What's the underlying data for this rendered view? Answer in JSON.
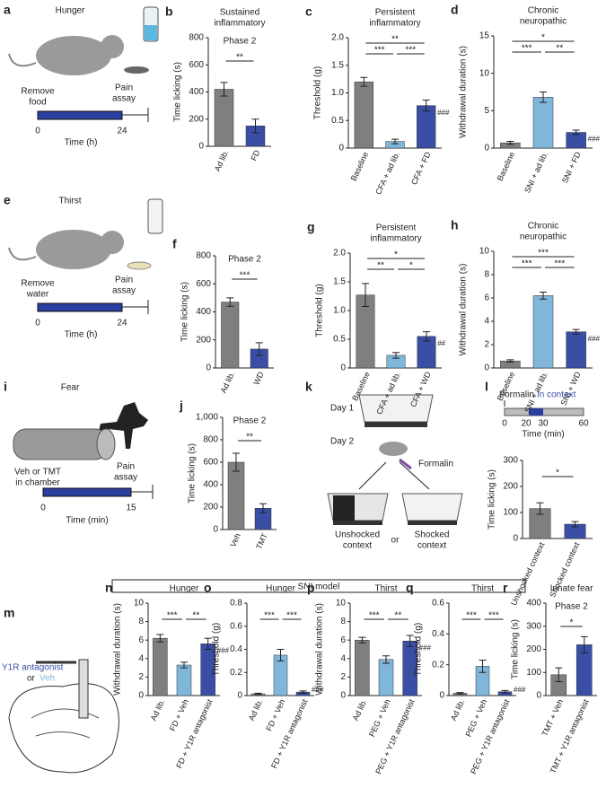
{
  "chart_data": [
    {
      "type": "bar",
      "label": "b",
      "title": [
        "Sustained",
        "inflammatory"
      ],
      "subtitle": "Phase 2",
      "ylabel": "Time licking (s)",
      "ylim": [
        0,
        800
      ],
      "yticks": [
        0,
        200,
        400,
        600,
        800
      ],
      "categories": [
        "Ad lib.",
        "FD"
      ],
      "values": [
        420,
        150
      ],
      "errors": [
        50,
        50
      ],
      "colors": [
        "#7f7f7f",
        "#3a4ea6"
      ],
      "annotations": [
        {
          "text": "**",
          "from": 0,
          "to": 1
        }
      ]
    },
    {
      "type": "bar",
      "label": "c",
      "title": [
        "Persistent",
        "inflammatory"
      ],
      "ylabel": "Threshold (g)",
      "ylim": [
        0,
        2
      ],
      "yticks": [
        0,
        0.5,
        {
          "value": 1,
          "label": "1.0"
        },
        1.5,
        {
          "value": 2,
          "label": "2.0"
        }
      ],
      "categories": [
        "Baseline",
        "CFA + ad lib.",
        "CFA + FD"
      ],
      "values": [
        1.2,
        0.12,
        0.77
      ],
      "errors": [
        0.08,
        0.04,
        0.1
      ],
      "colors": [
        "#7f7f7f",
        "#7fb6d9",
        "#3a4ea6"
      ],
      "annotations": [
        {
          "text": "**",
          "from": 0,
          "to": 2
        },
        {
          "text": "***",
          "from": 0,
          "to": 1
        },
        {
          "text": "***",
          "from": 1,
          "to": 2
        },
        {
          "text": "###"
        }
      ]
    },
    {
      "type": "bar",
      "label": "d",
      "title": [
        "Chronic",
        "neuropathic"
      ],
      "ylabel": "Withdrawal duration (s)",
      "ylim": [
        0,
        15
      ],
      "yticks": [
        0,
        5,
        10,
        15
      ],
      "categories": [
        "Baseline",
        "SNI + ad lib.",
        "SNI + FD"
      ],
      "values": [
        0.7,
        6.8,
        2.1
      ],
      "errors": [
        0.2,
        0.7,
        0.3
      ],
      "colors": [
        "#7f7f7f",
        "#7fb6d9",
        "#3a4ea6"
      ],
      "annotations": [
        {
          "text": "*",
          "from": 0,
          "to": 2
        },
        {
          "text": "***",
          "from": 0,
          "to": 1
        },
        {
          "text": "**",
          "from": 1,
          "to": 2
        },
        {
          "text": "###"
        }
      ]
    },
    {
      "type": "bar",
      "label": "f",
      "subtitle": "Phase 2",
      "ylabel": "Time licking (s)",
      "ylim": [
        0,
        800
      ],
      "yticks": [
        0,
        200,
        400,
        600,
        800
      ],
      "categories": [
        "Ad lib.",
        "WD"
      ],
      "values": [
        470,
        135
      ],
      "errors": [
        30,
        45
      ],
      "colors": [
        "#7f7f7f",
        "#3a4ea6"
      ],
      "annotations": [
        {
          "text": "***",
          "from": 0,
          "to": 1
        }
      ]
    },
    {
      "type": "bar",
      "label": "g",
      "title": [
        "Persistent",
        "inflammatory"
      ],
      "ylabel": "Threshold (g)",
      "ylim": [
        0,
        2
      ],
      "yticks": [
        0,
        0.5,
        {
          "value": 1,
          "label": "1.0"
        },
        1.5,
        {
          "value": 2,
          "label": "2.0"
        }
      ],
      "categories": [
        "Baseline",
        "CFA + ad lib.",
        "CFA + WD"
      ],
      "values": [
        1.27,
        0.22,
        0.55
      ],
      "errors": [
        0.2,
        0.05,
        0.08
      ],
      "colors": [
        "#7f7f7f",
        "#7fb6d9",
        "#3a4ea6"
      ],
      "annotations": [
        {
          "text": "*",
          "from": 0,
          "to": 2
        },
        {
          "text": "**",
          "from": 0,
          "to": 1
        },
        {
          "text": "*",
          "from": 1,
          "to": 2
        },
        {
          "text": "##"
        }
      ]
    },
    {
      "type": "bar",
      "label": "h",
      "title": [
        "Chronic",
        "neuropathic"
      ],
      "ylabel": "Withdrawal duration (s)",
      "ylim": [
        0,
        10
      ],
      "yticks": [
        0,
        2,
        4,
        6,
        8,
        10
      ],
      "categories": [
        "Baseline",
        "SNI + ad lib.",
        "SNI + WD"
      ],
      "values": [
        0.6,
        6.2,
        3.1
      ],
      "errors": [
        0.1,
        0.3,
        0.2
      ],
      "colors": [
        "#7f7f7f",
        "#7fb6d9",
        "#3a4ea6"
      ],
      "annotations": [
        {
          "text": "***",
          "from": 0,
          "to": 2
        },
        {
          "text": "***",
          "from": 0,
          "to": 1
        },
        {
          "text": "***",
          "from": 1,
          "to": 2
        },
        {
          "text": "###"
        }
      ]
    },
    {
      "type": "bar",
      "label": "j",
      "subtitle": "Phase 2",
      "ylabel": "Time licking (s)",
      "ylim": [
        0,
        1000
      ],
      "yticks": [
        0,
        200,
        400,
        600,
        800,
        {
          "value": 1000,
          "label": "1,000"
        }
      ],
      "categories": [
        "Veh",
        "TMT"
      ],
      "values": [
        600,
        190
      ],
      "errors": [
        80,
        40
      ],
      "colors": [
        "#7f7f7f",
        "#3a4ea6"
      ],
      "annotations": [
        {
          "text": "**",
          "from": 0,
          "to": 1
        }
      ]
    },
    {
      "type": "bar",
      "ylabel": "Time licking (s)",
      "ylim": [
        0,
        300
      ],
      "yticks": [
        0,
        100,
        200,
        300
      ],
      "categories": [
        "Unshocked context",
        "Shocked context"
      ],
      "values": [
        115,
        55
      ],
      "errors": [
        22,
        10
      ],
      "colors": [
        "#7f7f7f",
        "#3a4ea6"
      ],
      "annotations": [
        {
          "text": "*",
          "from": 0,
          "to": 1
        }
      ]
    },
    {
      "type": "bar",
      "label": "n",
      "title": [
        "Hunger"
      ],
      "ylabel": "Withdrawal duration (s)",
      "ylim": [
        0,
        10
      ],
      "yticks": [
        0,
        2,
        4,
        6,
        8,
        10
      ],
      "categories": [
        "Ad lib.",
        "FD + Veh",
        "FD + Y1R antagonist"
      ],
      "values": [
        6.2,
        3.3,
        5.6
      ],
      "errors": [
        0.4,
        0.3,
        0.6
      ],
      "colors": [
        "#7f7f7f",
        "#7fb6d9",
        "#3a4ea6"
      ],
      "annotations": [
        {
          "text": "***",
          "from": 0,
          "to": 1
        },
        {
          "text": "**",
          "from": 1,
          "to": 2
        },
        {
          "text": "###"
        }
      ]
    },
    {
      "type": "bar",
      "label": "o",
      "title": [
        "Hunger"
      ],
      "ylabel": "Threshold (g)",
      "ylim": [
        0,
        0.8
      ],
      "yticks": [
        0,
        0.2,
        0.4,
        0.6,
        0.8
      ],
      "categories": [
        "Ad lib.",
        "FD + Veh",
        "FD + Y1R antagonist"
      ],
      "values": [
        0.015,
        0.35,
        0.03
      ],
      "errors": [
        0.005,
        0.05,
        0.01
      ],
      "colors": [
        "#7f7f7f",
        "#7fb6d9",
        "#3a4ea6"
      ],
      "annotations": [
        {
          "text": "***",
          "from": 0,
          "to": 1
        },
        {
          "text": "***",
          "from": 1,
          "to": 2
        },
        {
          "text": "###"
        }
      ]
    },
    {
      "type": "bar",
      "label": "p",
      "title": [
        "Thirst"
      ],
      "ylabel": "Withdrawal duration (s)",
      "ylim": [
        0,
        10
      ],
      "yticks": [
        0,
        2,
        4,
        6,
        8,
        10
      ],
      "categories": [
        "Ad lib.",
        "PEG + Veh",
        "PEG + Y1R antagonist"
      ],
      "values": [
        6.0,
        3.9,
        5.9
      ],
      "errors": [
        0.3,
        0.4,
        0.6
      ],
      "colors": [
        "#7f7f7f",
        "#7fb6d9",
        "#3a4ea6"
      ],
      "annotations": [
        {
          "text": "***",
          "from": 0,
          "to": 1
        },
        {
          "text": "**",
          "from": 1,
          "to": 2
        },
        {
          "text": "###"
        }
      ]
    },
    {
      "type": "bar",
      "label": "q",
      "title": [
        "Thirst"
      ],
      "ylabel": "Threshold (g)",
      "ylim": [
        0,
        0.6
      ],
      "yticks": [
        0,
        0.2,
        0.4,
        0.6
      ],
      "categories": [
        "Ad lib.",
        "PEG + Veh",
        "PEG + Y1R antagonist"
      ],
      "values": [
        0.015,
        0.19,
        0.025
      ],
      "errors": [
        0.005,
        0.04,
        0.008
      ],
      "colors": [
        "#7f7f7f",
        "#7fb6d9",
        "#3a4ea6"
      ],
      "annotations": [
        {
          "text": "***",
          "from": 0,
          "to": 1
        },
        {
          "text": "***",
          "from": 1,
          "to": 2
        },
        {
          "text": "###"
        }
      ]
    },
    {
      "type": "bar",
      "label": "r",
      "title": [
        "Innate fear"
      ],
      "subtitle": "Phase 2",
      "ylabel": "Time licking (s)",
      "ylim": [
        0,
        400
      ],
      "yticks": [
        0,
        100,
        200,
        300,
        400
      ],
      "categories": [
        "TMT + Veh",
        "TMT + Y1R antagonist"
      ],
      "values": [
        90,
        220
      ],
      "errors": [
        30,
        35
      ],
      "colors": [
        "#7f7f7f",
        "#3a4ea6"
      ],
      "annotations": [
        {
          "text": "*",
          "from": 0,
          "to": 1
        }
      ]
    }
  ],
  "diagrams": {
    "a": {
      "label": "a",
      "title": "Hunger",
      "start": [
        "Remove",
        "food"
      ],
      "end": [
        "Pain",
        "assay"
      ],
      "ticks": [
        "0",
        "24"
      ],
      "axis": "Time (h)"
    },
    "e": {
      "label": "e",
      "title": "Thirst",
      "start": [
        "Remove",
        "water"
      ],
      "end": [
        "Pain",
        "assay"
      ],
      "ticks": [
        "0",
        "24"
      ],
      "axis": "Time (h)"
    },
    "i": {
      "label": "i",
      "title": "Fear",
      "start": [
        "Veh or TMT",
        "in chamber"
      ],
      "end": [
        "Pain",
        "assay"
      ],
      "ticks": [
        "0",
        "15"
      ],
      "axis": "Time (min)"
    },
    "k": {
      "label": "k",
      "day1": "Day 1",
      "day2": "Day 2",
      "injection": "Formalin",
      "left": [
        "Unshocked",
        "context"
      ],
      "or": "or",
      "right": [
        "Shocked",
        "context"
      ]
    },
    "l": {
      "label": "l",
      "injection": "Formalin",
      "phase": "In context",
      "ticks": [
        "0",
        "20",
        "30",
        "60"
      ],
      "axis": "Time (min)"
    },
    "m": {
      "label": "m",
      "drug": "Y1R antagonist",
      "or": "or",
      "vehicle": "Veh"
    },
    "header": "SNI model"
  }
}
